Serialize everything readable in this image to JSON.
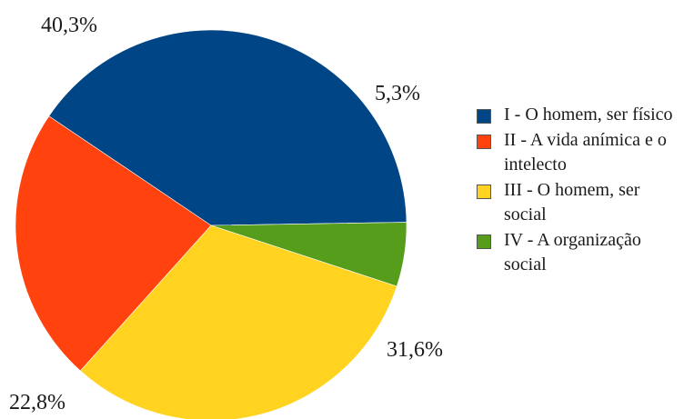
{
  "chart_data": {
    "type": "pie",
    "title": "",
    "legend_position": "right",
    "slices": [
      {
        "label": "I - O homem, ser físico",
        "value": 40.3,
        "value_label": "40,3%",
        "color": "#004586"
      },
      {
        "label": "IV - A organização social",
        "value": 5.3,
        "value_label": "5,3%",
        "color": "#579d1c"
      },
      {
        "label": "III - O homem, ser social",
        "value": 31.6,
        "value_label": "31,6%",
        "color": "#ffd320"
      },
      {
        "label": "II - A vida anímica e o intelecto",
        "value": 22.8,
        "value_label": "22,8%",
        "color": "#ff420e"
      }
    ],
    "legend": [
      {
        "label": "I - O homem, ser físico",
        "color": "#004586"
      },
      {
        "label": "II - A vida anímica e o intelecto",
        "color": "#ff420e"
      },
      {
        "label": "III - O homem, ser social",
        "color": "#ffd320"
      },
      {
        "label": "IV - A organização social",
        "color": "#579d1c"
      }
    ]
  }
}
